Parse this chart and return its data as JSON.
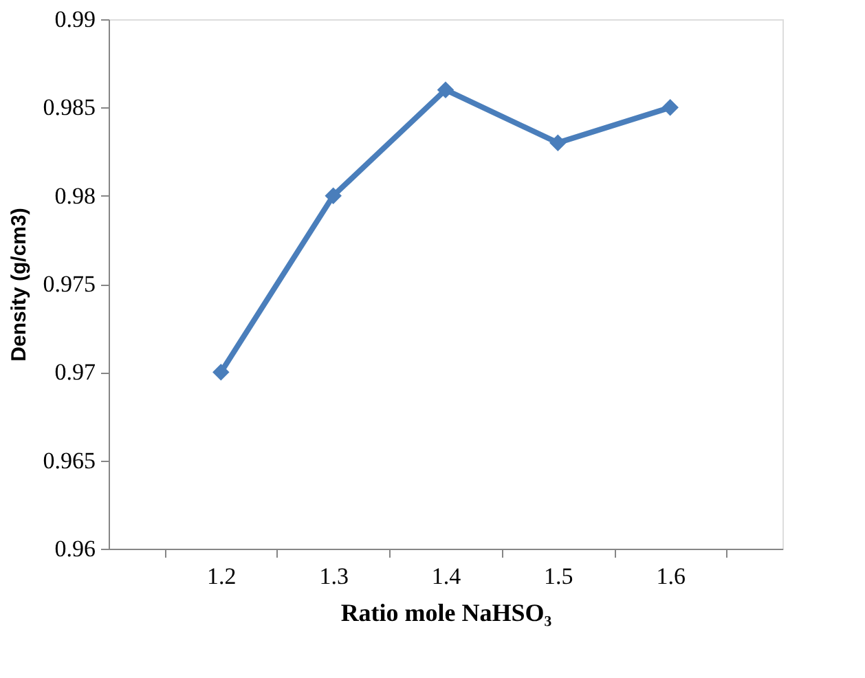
{
  "chart_data": {
    "type": "line",
    "categories": [
      "1.2",
      "1.3",
      "1.4",
      "1.5",
      "1.6"
    ],
    "series": [
      {
        "color": "#4a7ebb",
        "values": [
          0.97,
          0.98,
          0.986,
          0.983,
          0.985
        ]
      }
    ],
    "xlabel": "Ratio  mole NaHSO₃",
    "ylabel": "Density  (g/cm3)",
    "ylim": [
      0.96,
      0.99
    ],
    "yticks": [
      0.96,
      0.965,
      0.97,
      0.975,
      0.98,
      0.985,
      0.99
    ],
    "grid": false,
    "marker": "diamond",
    "line_style": "solid"
  }
}
